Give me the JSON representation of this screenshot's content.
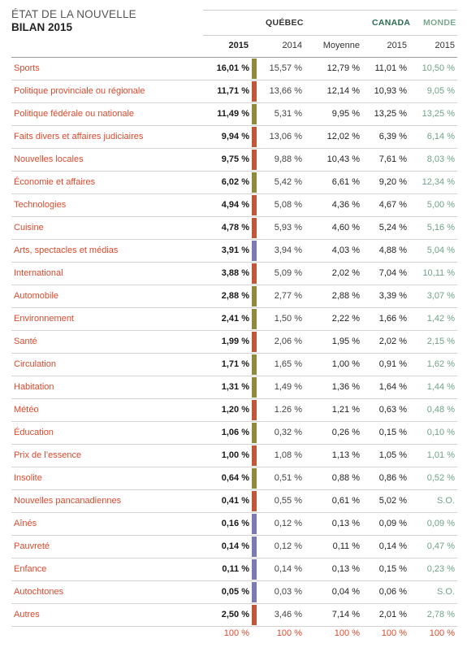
{
  "title": {
    "line1": "ÉTAT DE LA NOUVELLE",
    "line2": "BILAN 2015"
  },
  "groups": {
    "quebec": "QUÉBEC",
    "canada": "CANADA",
    "monde": "MONDE"
  },
  "columns": {
    "q2015": "2015",
    "q2014": "2014",
    "moyenne": "Moyenne",
    "canada2015": "2015",
    "monde2015": "2015"
  },
  "colors": {
    "label": "#d84a2d",
    "monde": "#6fa389",
    "bar_olive": "#8f8a3e",
    "bar_red": "#c2563a",
    "bar_blue": "#7b7bb4"
  },
  "rows": [
    {
      "label": "Sports",
      "q2015": "16,01 %",
      "bar": "olive",
      "q2014": "15,57 %",
      "moyenne": "12,79 %",
      "canada": "11,01 %",
      "monde": "10,50 %"
    },
    {
      "label": "Politique provinciale ou régionale",
      "q2015": "11,71 %",
      "bar": "red",
      "q2014": "13,66 %",
      "moyenne": "12,14 %",
      "canada": "10,93 %",
      "monde": "9,05 %"
    },
    {
      "label": "Politique fédérale ou nationale",
      "q2015": "11,49 %",
      "bar": "olive",
      "q2014": "5,31 %",
      "moyenne": "9,95 %",
      "canada": "13,25 %",
      "monde": "13,25 %"
    },
    {
      "label": "Faits divers et affaires judiciaires",
      "q2015": "9,94 %",
      "bar": "red",
      "q2014": "13,06 %",
      "moyenne": "12,02 %",
      "canada": "6,39 %",
      "monde": "6,14 %"
    },
    {
      "label": "Nouvelles locales",
      "q2015": "9,75 %",
      "bar": "red",
      "q2014": "9,88 %",
      "moyenne": "10,43 %",
      "canada": "7,61 %",
      "monde": "8,03 %"
    },
    {
      "label": "Économie et affaires",
      "q2015": "6,02 %",
      "bar": "olive",
      "q2014": "5,42 %",
      "moyenne": "6,61 %",
      "canada": "9,20 %",
      "monde": "12,34 %"
    },
    {
      "label": "Technologies",
      "q2015": "4,94 %",
      "bar": "red",
      "q2014": "5,08 %",
      "moyenne": "4,36 %",
      "canada": "4,67 %",
      "monde": "5,00 %"
    },
    {
      "label": "Cuisine",
      "q2015": "4,78 %",
      "bar": "red",
      "q2014": "5,93 %",
      "moyenne": "4,60 %",
      "canada": "5,24 %",
      "monde": "5,16 %"
    },
    {
      "label": "Arts, spectacles et médias",
      "q2015": "3,91 %",
      "bar": "blue",
      "q2014": "3,94 %",
      "moyenne": "4,03 %",
      "canada": "4,88 %",
      "monde": "5,04 %"
    },
    {
      "label": "International",
      "q2015": "3,88 %",
      "bar": "red",
      "q2014": "5,09 %",
      "moyenne": "2,02 %",
      "canada": "7,04 %",
      "monde": "10,11 %"
    },
    {
      "label": "Automobile",
      "q2015": "2,88 %",
      "bar": "olive",
      "q2014": "2,77 %",
      "moyenne": "2,88 %",
      "canada": "3,39 %",
      "monde": "3,07 %"
    },
    {
      "label": "Environnement",
      "q2015": "2,41 %",
      "bar": "olive",
      "q2014": "1,50 %",
      "moyenne": "2,22 %",
      "canada": "1,66 %",
      "monde": "1,42 %"
    },
    {
      "label": "Santé",
      "q2015": "1,99 %",
      "bar": "red",
      "q2014": "2,06 %",
      "moyenne": "1,95 %",
      "canada": "2,02 %",
      "monde": "2,15 %"
    },
    {
      "label": "Circulation",
      "q2015": "1,71 %",
      "bar": "olive",
      "q2014": "1,65 %",
      "moyenne": "1,00 %",
      "canada": "0,91 %",
      "monde": "1,62 %"
    },
    {
      "label": "Habitation",
      "q2015": "1,31 %",
      "bar": "olive",
      "q2014": "1,49 %",
      "moyenne": "1,36 %",
      "canada": "1,64 %",
      "monde": "1,44 %"
    },
    {
      "label": "Météo",
      "q2015": "1,20 %",
      "bar": "red",
      "q2014": "1.26 %",
      "moyenne": "1,21 %",
      "canada": "0,63 %",
      "monde": "0,48 %"
    },
    {
      "label": "Éducation",
      "q2015": "1,06 %",
      "bar": "olive",
      "q2014": "0,32 %",
      "moyenne": "0,26 %",
      "canada": "0,15 %",
      "monde": "0,10 %"
    },
    {
      "label": "Prix de l’essence",
      "q2015": "1,00 %",
      "bar": "red",
      "q2014": "1,08 %",
      "moyenne": "1,13 %",
      "canada": "1,05 %",
      "monde": "1,01 %"
    },
    {
      "label": "Insolite",
      "q2015": "0,64 %",
      "bar": "olive",
      "q2014": "0,51 %",
      "moyenne": "0,88 %",
      "canada": "0,86 %",
      "monde": "0,52 %"
    },
    {
      "label": "Nouvelles pancanadiennes",
      "q2015": "0,41 %",
      "bar": "red",
      "q2014": "0,55 %",
      "moyenne": "0,61 %",
      "canada": "5,02 %",
      "monde": "S.O."
    },
    {
      "label": "Aînés",
      "q2015": "0,16 %",
      "bar": "blue",
      "q2014": "0,12 %",
      "moyenne": "0,13 %",
      "canada": "0,09 %",
      "monde": "0,09 %"
    },
    {
      "label": "Pauvreté",
      "q2015": "0,14 %",
      "bar": "blue",
      "q2014": "0,12 %",
      "moyenne": "0,11 %",
      "canada": "0,14 %",
      "monde": "0,47 %"
    },
    {
      "label": "Enfance",
      "q2015": "0,11 %",
      "bar": "blue",
      "q2014": "0,14 %",
      "moyenne": "0,13 %",
      "canada": "0,15 %",
      "monde": "0,23 %"
    },
    {
      "label": "Autochtones",
      "q2015": "0,05 %",
      "bar": "blue",
      "q2014": "0,03 %",
      "moyenne": "0,04 %",
      "canada": "0,06 %",
      "monde": "S.O."
    },
    {
      "label": "Autres",
      "q2015": "2,50 %",
      "bar": "red",
      "q2014": "3,46 %",
      "moyenne": "7,14 %",
      "canada": "2,01 %",
      "monde": "2,78 %"
    }
  ],
  "totals": {
    "q2015": "100 %",
    "q2014": "100 %",
    "moyenne": "100 %",
    "canada": "100 %",
    "monde": "100 %"
  }
}
